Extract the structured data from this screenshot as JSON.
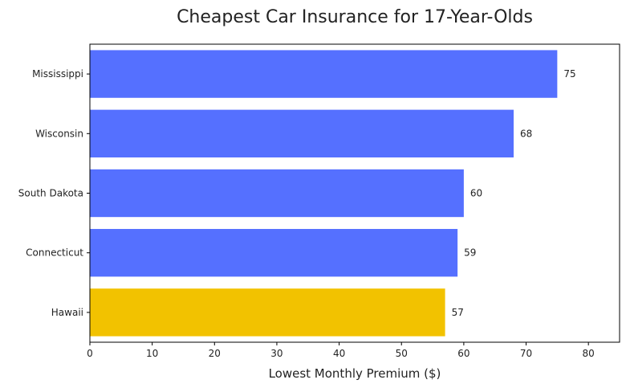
{
  "chart_data": {
    "type": "bar",
    "orientation": "horizontal",
    "title": "Cheapest Car Insurance for 17-Year-Olds",
    "xlabel": "Lowest Monthly Premium ($)",
    "ylabel": "",
    "categories": [
      "Mississippi",
      "Wisconsin",
      "South Dakota",
      "Connecticut",
      "Hawaii"
    ],
    "values": [
      75,
      68,
      60,
      59,
      57
    ],
    "bar_colors": [
      "#5570ff",
      "#5570ff",
      "#5570ff",
      "#5570ff",
      "#f2c200"
    ],
    "xlim": [
      0,
      85
    ],
    "xticks": [
      0,
      10,
      20,
      30,
      40,
      50,
      60,
      70,
      80
    ],
    "grid": false,
    "legend": "none"
  }
}
